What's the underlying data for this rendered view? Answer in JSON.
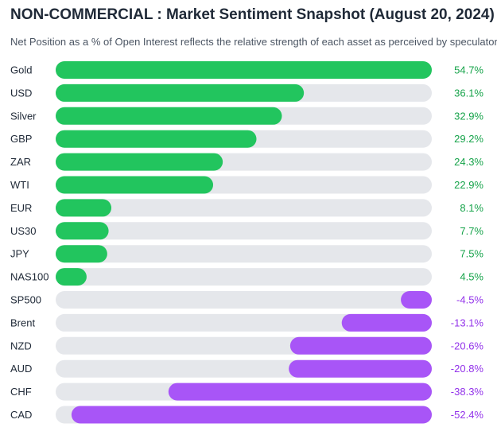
{
  "chart_data": {
    "type": "bar",
    "orientation": "horizontal",
    "title": "NON-COMMERCIAL : Market Sentiment Snapshot (August 20, 2024)",
    "subtitle": "Net Position as a % of Open Interest reflects the relative strength of each asset as perceived by speculators",
    "categories": [
      "Gold",
      "USD",
      "Silver",
      "GBP",
      "ZAR",
      "WTI",
      "EUR",
      "US30",
      "JPY",
      "NAS100",
      "SP500",
      "Brent",
      "NZD",
      "AUD",
      "CHF",
      "CAD"
    ],
    "values": [
      54.7,
      36.1,
      32.9,
      29.2,
      24.3,
      22.9,
      8.1,
      7.7,
      7.5,
      4.5,
      -4.5,
      -13.1,
      -20.6,
      -20.8,
      -38.3,
      -52.4
    ],
    "labels": [
      "54.7%",
      "36.1%",
      "32.9%",
      "29.2%",
      "24.3%",
      "22.9%",
      "8.1%",
      "7.7%",
      "7.5%",
      "4.5%",
      "-4.5%",
      "-13.1%",
      "-20.6%",
      "-20.8%",
      "-38.3%",
      "-52.4%"
    ],
    "max_abs": 54.7,
    "colors": {
      "positive": "#22c55e",
      "negative": "#a855f7",
      "track": "#e5e7eb",
      "positive_text": "#16a34a",
      "negative_text": "#9333ea",
      "category_text": "#1f2937"
    }
  }
}
